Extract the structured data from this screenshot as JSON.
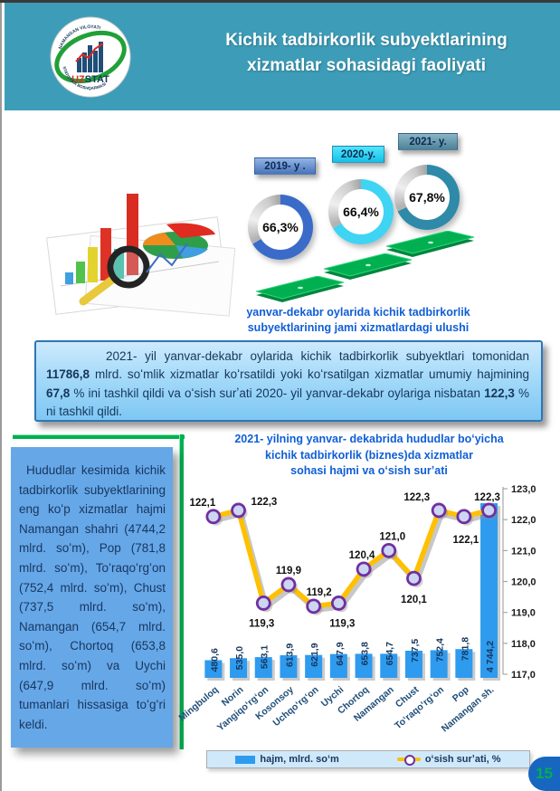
{
  "header": {
    "title_line1": "Kichik tadbirkorlik subyektlarining",
    "title_line2": "xizmatlar sohasidagi faoliyati",
    "logo": {
      "text_uz": "UZ",
      "text_stat": "STAT",
      "arc_top": "NAMANGAN VILOYATI",
      "arc_bottom": "STATISTIKA BOSHQARMASI"
    }
  },
  "donut_section": {
    "caption_line1": "yanvar-dekabr oylarida kichik tadbirkorlik",
    "caption_line2": "subyektlarining jami xizmatlardagi ulushi",
    "donuts": [
      {
        "year_label": "2019- y .",
        "value": 66.3,
        "value_label": "66,3%",
        "ring_color": "#3a6bc9",
        "tab_top": "#93b5e6",
        "tab_bottom": "#4a74ba"
      },
      {
        "year_label": "2020-y.",
        "value": 66.4,
        "value_label": "66,4%",
        "ring_color": "#3fd4f4",
        "tab_top": "#55e5fc",
        "tab_bottom": "#15c2e8"
      },
      {
        "year_label": "2021- y.",
        "value": 67.8,
        "value_label": "67,8%",
        "ring_color": "#2e8aa8",
        "tab_top": "#8ab4c4",
        "tab_bottom": "#4d8299"
      }
    ]
  },
  "summary_box": {
    "segments": [
      {
        "t": "2021- yil yanvar-dekabr oylarida kichik tadbirkorlik subyektlari tomonidan ",
        "b": false
      },
      {
        "t": "11786,8",
        "b": true
      },
      {
        "t": " mlrd. soʻmlik xizmatlar koʻrsatildi yoki koʻrsatilgan xizmatlar umumiy hajmining ",
        "b": false
      },
      {
        "t": "67,8",
        "b": true
      },
      {
        "t": " % ini tashkil qildi va oʻsish surʼati 2020- yil yanvar-dekabr oylariga nisbatan ",
        "b": false
      },
      {
        "t": "122,3",
        "b": true
      },
      {
        "t": " % ni tashkil qildi.",
        "b": false
      }
    ]
  },
  "sidebar": {
    "text": "Hududlar kesimida kichik tadbirkorlik subyektlarining eng koʻp xizmatlar hajmi Namangan shahri (4744,2 mlrd. soʻm), Pop (781,8 mlrd. soʻm), Toʻraqoʻrgʻon (752,4 mlrd. soʻm), Chust (737,5 mlrd. soʻm), Namangan (654,7 mlrd. soʻm), Chortoq (653,8 mlrd. soʻm) va Uychi (647,9 mlrd. soʻm) tumanlari hissasiga toʻgʻri keldi."
  },
  "chart_title": {
    "line1": "2021- yilning yanvar- dekabrida hududlar boʻyicha",
    "line2": "kichik tadbirkorlik (biznes)da xizmatlar",
    "line3": "sohasi hajmi va oʻsish surʼati"
  },
  "chart_data": {
    "type": "bar",
    "subtype": "bar+line combo, secondary right axis for line",
    "title": "2021- yilning yanvar- dekabrida hududlar boʻyicha kichik tadbirkorlik (biznes)da xizmatlar sohasi hajmi va oʻsish surʼati",
    "categories": [
      "Mingbuloq",
      "Norin",
      "Yangiqoʻrgʻon",
      "Kosonsoy",
      "Uchqoʻrgʻon",
      "Uychi",
      "Chortoq",
      "Namangan",
      "Chust",
      "Toʻraqoʻrgʻon",
      "Pop",
      "Namangan sh."
    ],
    "series": [
      {
        "name": "hajm, mlrd. soʻm",
        "type": "bar",
        "axis": "left-hidden",
        "color": "#2e9bef",
        "values": [
          480.6,
          535.0,
          563.1,
          613.9,
          621.9,
          647.9,
          653.8,
          654.7,
          737.5,
          752.4,
          781.8,
          4744.2
        ],
        "value_labels": [
          "480,6",
          "535,0",
          "563,1",
          "613,9",
          "621,9",
          "647,9",
          "653,8",
          "654,7",
          "737,5",
          "752,4",
          "781,8",
          "4 744,2"
        ]
      },
      {
        "name": "oʻsish surʼati, %",
        "type": "line",
        "axis": "right",
        "color": "#FFC000",
        "marker_stroke": "#7030a0",
        "marker_fill": "#ccd6f2",
        "values": [
          122.1,
          122.3,
          119.3,
          119.9,
          119.2,
          119.3,
          120.4,
          121.0,
          120.1,
          122.3,
          122.1,
          122.3
        ],
        "value_labels": [
          "122,1",
          "122,3",
          "119,3",
          "119,9",
          "119,2",
          "119,3",
          "120,4",
          "121,0",
          "120,1",
          "122,3",
          "122,1",
          "122,3"
        ]
      }
    ],
    "right_axis": {
      "min": 117.0,
      "max": 123.0,
      "step": 1.0,
      "tick_labels": [
        "123,0",
        "122,0",
        "121,0",
        "120,0",
        "119,0",
        "118,0",
        "117,0"
      ]
    },
    "grid": false,
    "legend_position": "bottom"
  },
  "legend": {
    "bar_label": "hajm, mlrd. soʻm",
    "line_label": "oʻsish surʼati, %"
  },
  "page": {
    "number": "15"
  }
}
